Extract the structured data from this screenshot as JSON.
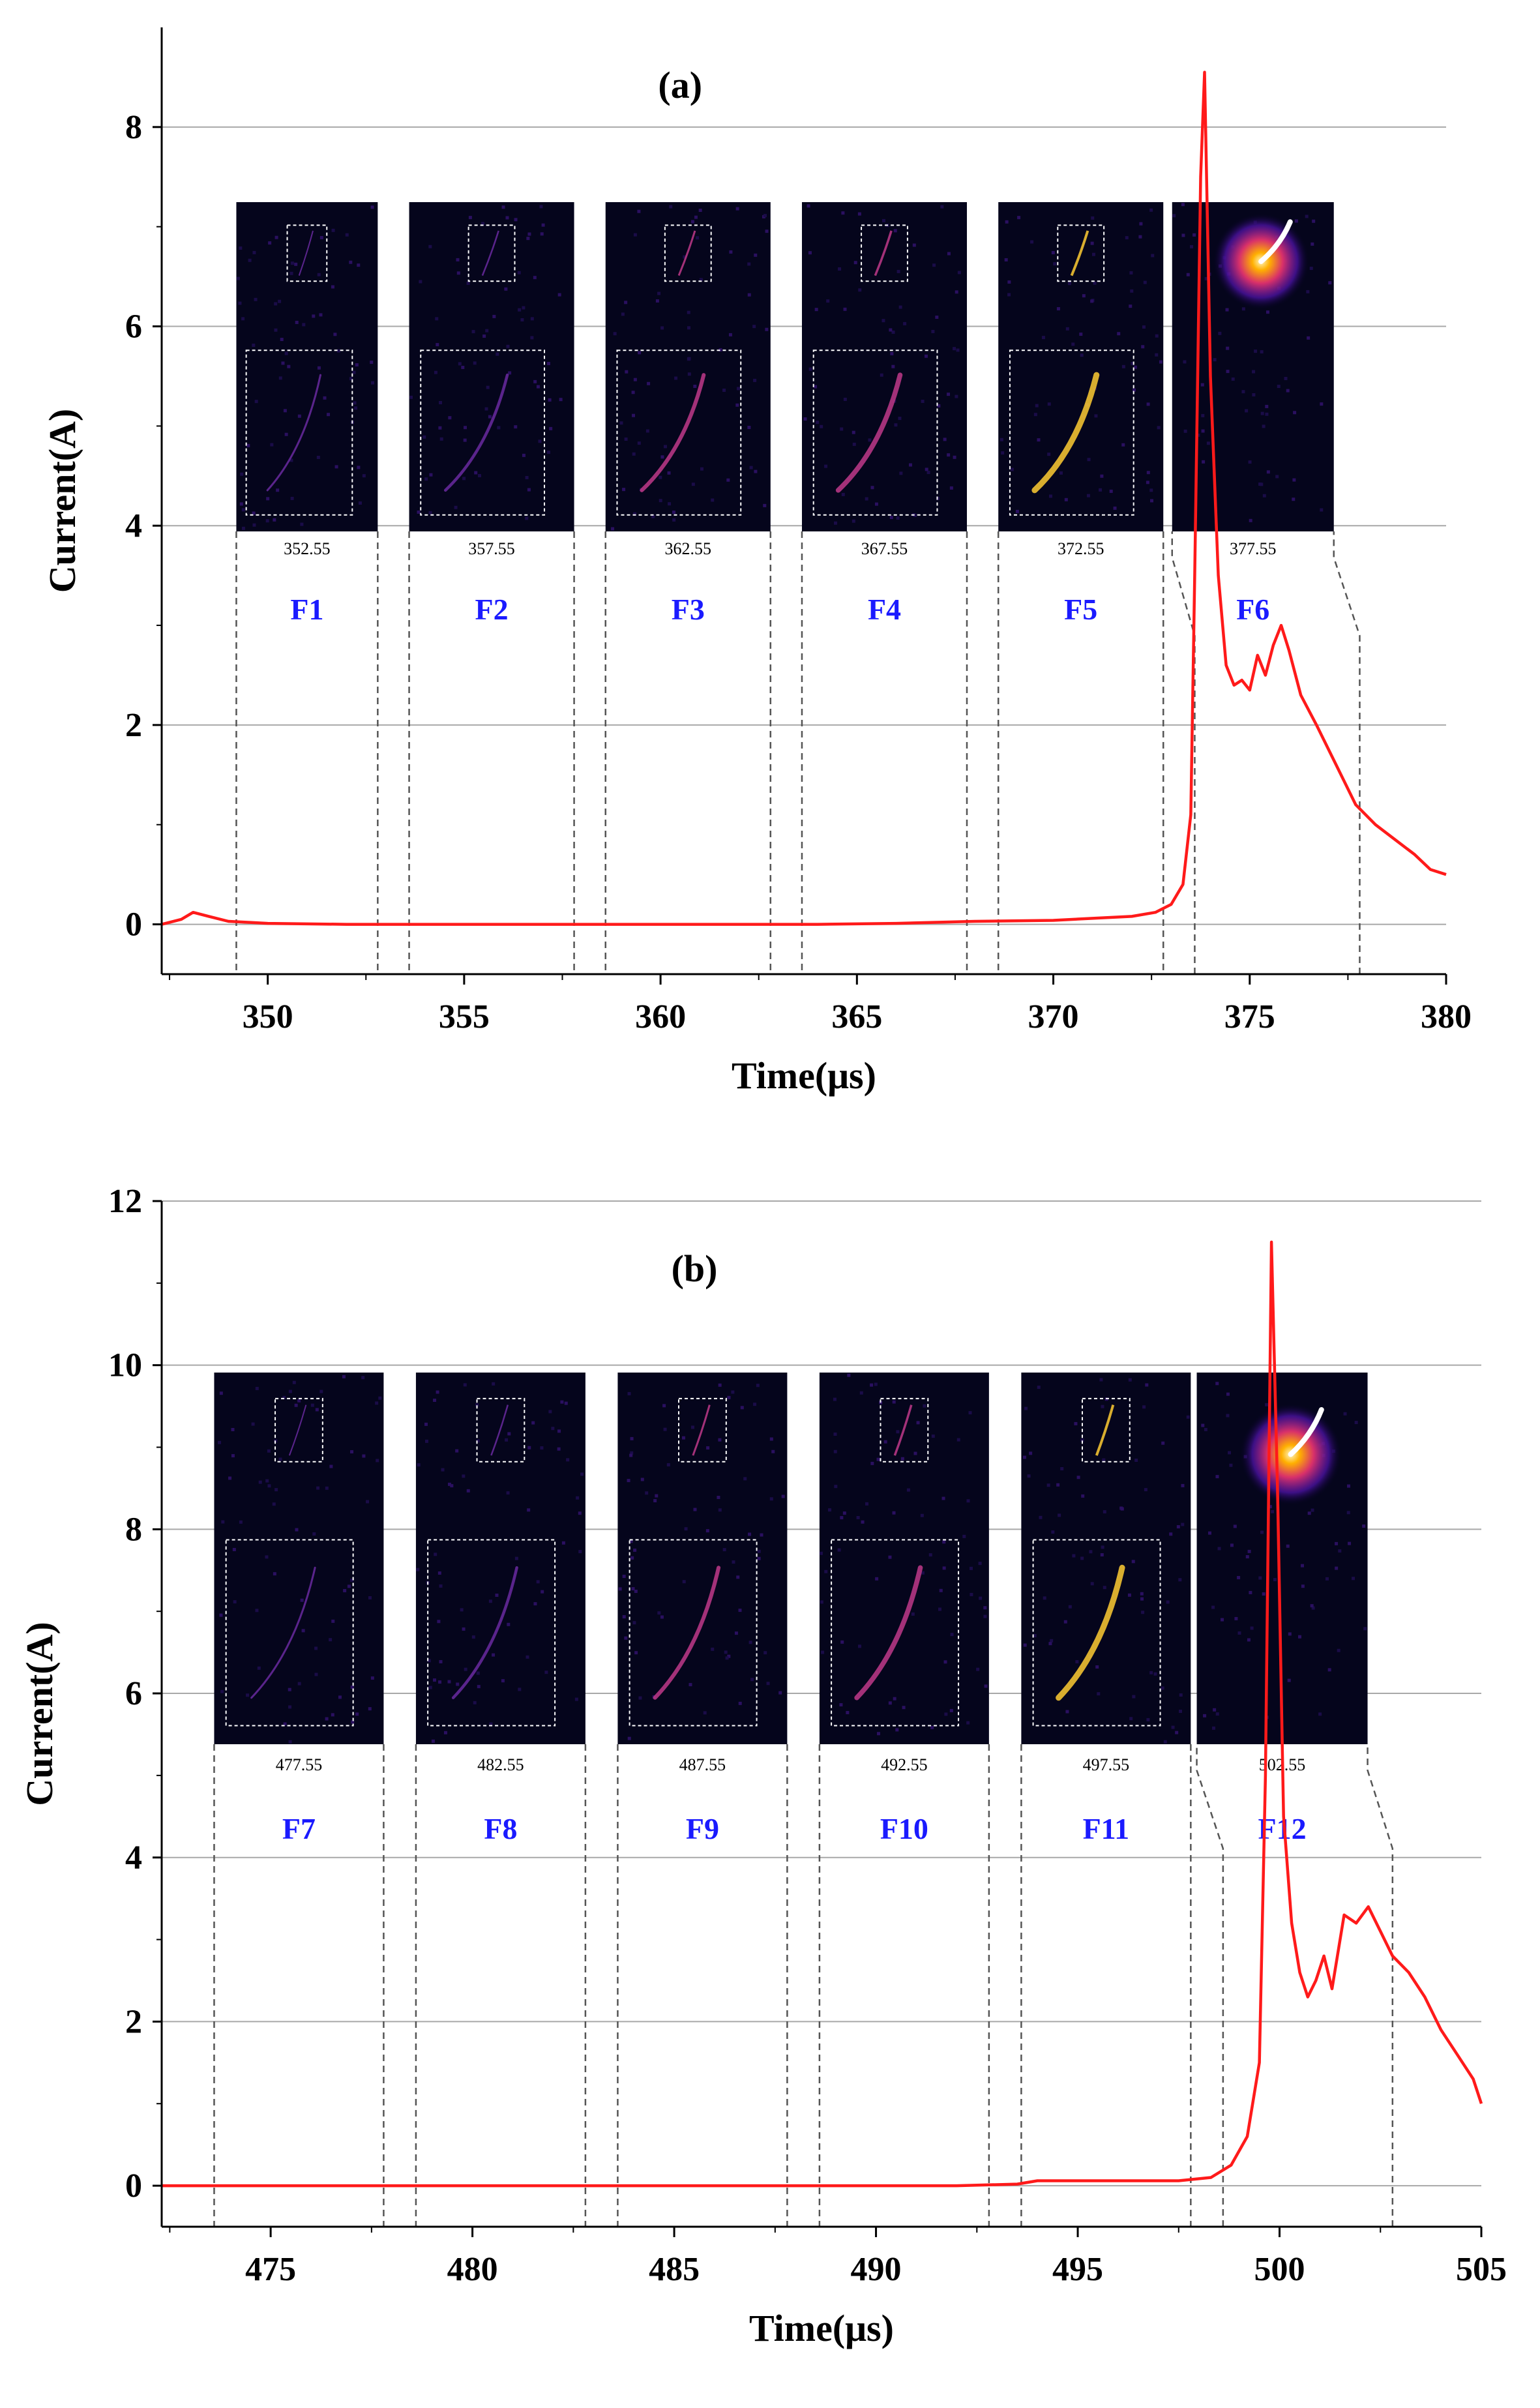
{
  "chart_data": [
    {
      "panel_label": "(a)",
      "type": "line",
      "xlabel": "Time(μs)",
      "ylabel": "Current(A)",
      "xlim": [
        347.3,
        380
      ],
      "ylim": [
        -0.5,
        9
      ],
      "xticks": [
        350,
        355,
        360,
        365,
        370,
        375,
        380
      ],
      "yticks": [
        0,
        2,
        4,
        6,
        8
      ],
      "grid": "horizontal",
      "series_color": "#ff1a1a",
      "series": [
        {
          "x": [
            347.3,
            347.8,
            348.1,
            348.5,
            349,
            349.5,
            350,
            352,
            354,
            356,
            358,
            360,
            362,
            364,
            366,
            368,
            370,
            371,
            372,
            372.6,
            373.0,
            373.3,
            373.5,
            373.6,
            373.75,
            373.85,
            374.0,
            374.2,
            374.4,
            374.6,
            374.8,
            375.0,
            375.2,
            375.4,
            375.6,
            375.8,
            376.0,
            376.3,
            376.7,
            377.2,
            377.7,
            378.2,
            378.7,
            379.2,
            379.6,
            380.0
          ],
          "y": [
            0.0,
            0.05,
            0.12,
            0.08,
            0.03,
            0.02,
            0.01,
            0.0,
            0.0,
            0.0,
            0.0,
            0.0,
            0.0,
            0.0,
            0.01,
            0.03,
            0.04,
            0.06,
            0.08,
            0.12,
            0.2,
            0.4,
            1.1,
            3.5,
            7.5,
            8.55,
            5.5,
            3.5,
            2.6,
            2.4,
            2.45,
            2.35,
            2.7,
            2.5,
            2.8,
            3.0,
            2.75,
            2.3,
            2.0,
            1.6,
            1.2,
            1.0,
            0.85,
            0.7,
            0.55,
            0.5
          ]
        }
      ],
      "frames": [
        {
          "label": "F1",
          "time": "352.55",
          "start": 349.2,
          "end": 352.8
        },
        {
          "label": "F2",
          "time": "357.55",
          "start": 353.6,
          "end": 357.8
        },
        {
          "label": "F3",
          "time": "362.55",
          "start": 358.6,
          "end": 362.8
        },
        {
          "label": "F4",
          "time": "367.55",
          "start": 363.6,
          "end": 367.8
        },
        {
          "label": "F5",
          "time": "372.55",
          "start": 368.6,
          "end": 372.8
        },
        {
          "label": "F6",
          "time": "377.55",
          "start": 373.6,
          "end": 377.8
        }
      ]
    },
    {
      "panel_label": "(b)",
      "type": "line",
      "xlabel": "Time(μs)",
      "ylabel": "Current(A)",
      "xlim": [
        472.3,
        505
      ],
      "ylim": [
        -0.5,
        12
      ],
      "xticks": [
        475,
        480,
        485,
        490,
        495,
        500,
        505
      ],
      "yticks": [
        0,
        2,
        4,
        6,
        8,
        10,
        12
      ],
      "grid": "horizontal",
      "series_color": "#ff1a1a",
      "series": [
        {
          "x": [
            472.3,
            474,
            476,
            478,
            480,
            482,
            484,
            486,
            488,
            490,
            492,
            493.5,
            494,
            496,
            497.5,
            498.3,
            498.8,
            499.2,
            499.5,
            499.65,
            499.8,
            499.95,
            500.1,
            500.3,
            500.5,
            500.7,
            500.9,
            501.1,
            501.3,
            501.6,
            501.9,
            502.2,
            502.5,
            502.8,
            503.2,
            503.6,
            504.0,
            504.4,
            504.8,
            505.0
          ],
          "y": [
            0.0,
            0.0,
            0.0,
            0.0,
            0.0,
            0.0,
            0.0,
            0.0,
            0.0,
            0.0,
            0.0,
            0.02,
            0.06,
            0.06,
            0.06,
            0.1,
            0.25,
            0.6,
            1.5,
            5.0,
            11.5,
            8.5,
            4.5,
            3.2,
            2.6,
            2.3,
            2.5,
            2.8,
            2.4,
            3.3,
            3.2,
            3.4,
            3.1,
            2.8,
            2.6,
            2.3,
            1.9,
            1.6,
            1.3,
            1.0
          ]
        }
      ],
      "frames": [
        {
          "label": "F7",
          "time": "477.55",
          "start": 473.6,
          "end": 477.8
        },
        {
          "label": "F8",
          "time": "482.55",
          "start": 478.6,
          "end": 482.8
        },
        {
          "label": "F9",
          "time": "487.55",
          "start": 483.6,
          "end": 487.8
        },
        {
          "label": "F10",
          "time": "492.55",
          "start": 488.6,
          "end": 492.8
        },
        {
          "label": "F11",
          "time": "497.55",
          "start": 493.6,
          "end": 497.8
        },
        {
          "label": "F12",
          "time": "502.55",
          "start": 498.6,
          "end": 502.8
        }
      ]
    }
  ]
}
